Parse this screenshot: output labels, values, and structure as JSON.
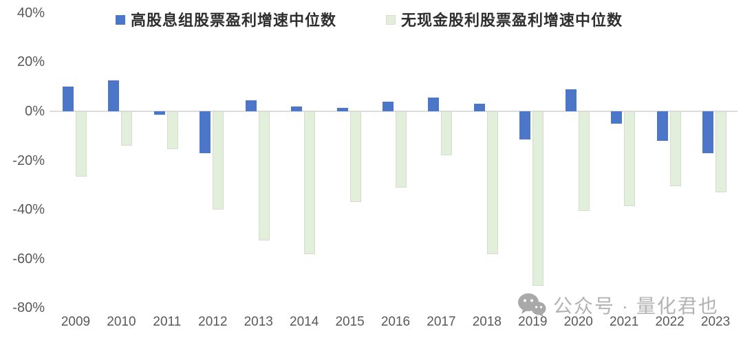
{
  "chart_data": {
    "type": "bar",
    "title": "",
    "xlabel": "",
    "ylabel": "",
    "ylim": [
      -80,
      40
    ],
    "grid": false,
    "legend_position": "top",
    "categories": [
      "2009",
      "2010",
      "2011",
      "2012",
      "2013",
      "2014",
      "2015",
      "2016",
      "2017",
      "2018",
      "2019",
      "2020",
      "2021",
      "2022",
      "2023"
    ],
    "series": [
      {
        "name": "高股息组股票盈利增速中位数",
        "color": "#4C76C8",
        "values": [
          10,
          12.5,
          -1.5,
          -17,
          4.5,
          2,
          1.5,
          4,
          5.5,
          3,
          -11.5,
          9,
          -5,
          -12,
          -17
        ]
      },
      {
        "name": "无现金股利股票盈利增速中位数",
        "color": "#E2EFDA",
        "border_color": "#D5DCCE",
        "values": [
          -26.5,
          -14,
          -15.5,
          -40,
          -52.5,
          -58,
          -37,
          -31,
          -18,
          -58,
          -71,
          -40.5,
          -38.5,
          -30.5,
          -33
        ]
      }
    ],
    "yticks": [
      {
        "label": "40%",
        "value": 40
      },
      {
        "label": "20%",
        "value": 20
      },
      {
        "label": "0%",
        "value": 0
      },
      {
        "label": "-20%",
        "value": -20
      },
      {
        "label": "-40%",
        "value": -40
      },
      {
        "label": "-60%",
        "value": -60
      },
      {
        "label": "-80%",
        "value": -80
      }
    ]
  },
  "watermark": {
    "text": "公众号 · 量化君也",
    "icon": "wechat-icon",
    "color": "#b3b3b3"
  },
  "style": {
    "axis_text_color": "#595959",
    "zero_line_color": "#dcdcdc"
  }
}
